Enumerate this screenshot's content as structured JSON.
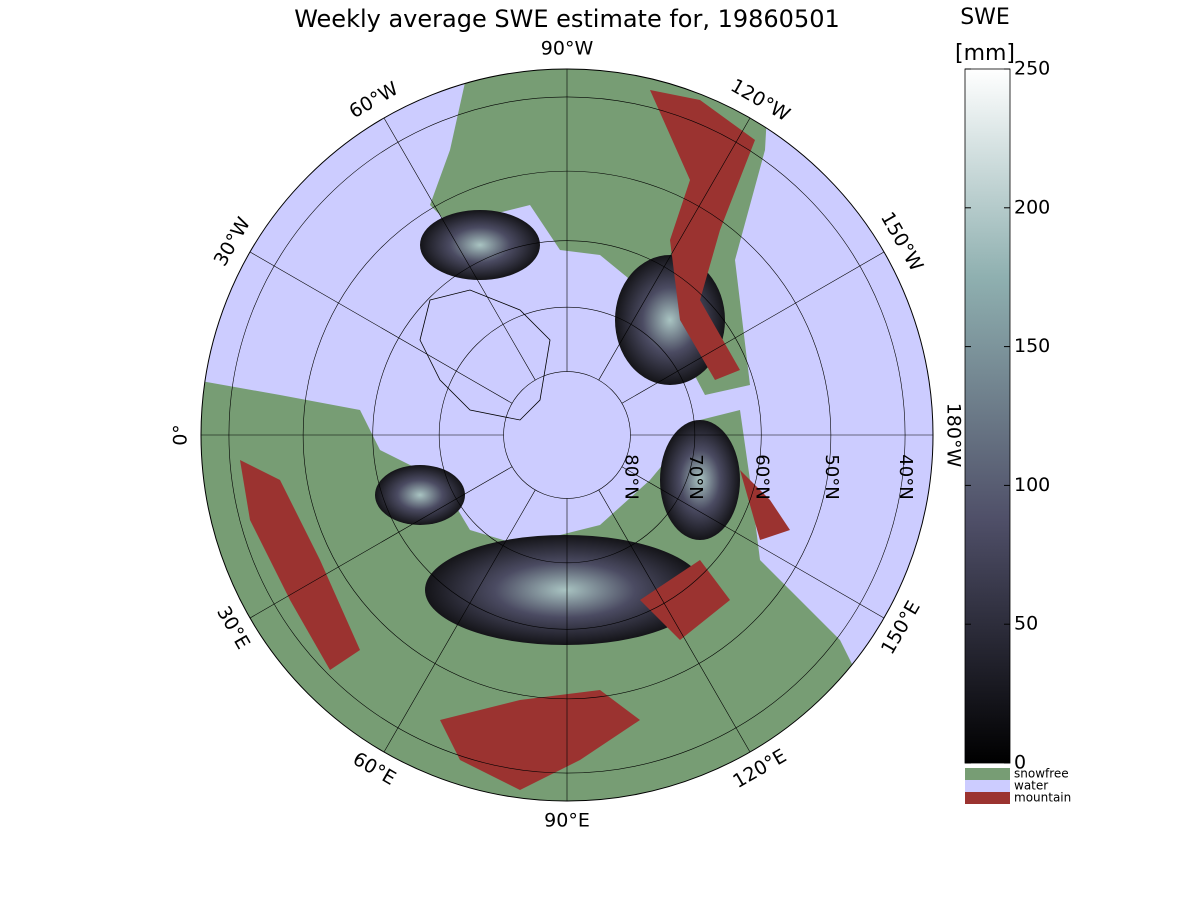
{
  "title": "Weekly average SWE estimate for, 19860501",
  "colorbar": {
    "label": "SWE",
    "unit": "[mm]",
    "lim": [
      0,
      250
    ],
    "ticks": [
      0,
      50,
      100,
      150,
      200,
      250
    ],
    "categories": [
      {
        "name": "snowfree",
        "color": "#779d74"
      },
      {
        "name": "water",
        "color": "#ccccff"
      },
      {
        "name": "mountain",
        "color": "#9b3330"
      }
    ]
  },
  "longitude_labels": [
    {
      "value": -90,
      "label": "90°W"
    },
    {
      "value": -60,
      "label": "60°W"
    },
    {
      "value": -30,
      "label": "30°W"
    },
    {
      "value": 0,
      "label": "0°"
    },
    {
      "value": 30,
      "label": "30°E"
    },
    {
      "value": 60,
      "label": "60°E"
    },
    {
      "value": 90,
      "label": "90°E"
    },
    {
      "value": 120,
      "label": "120°E"
    },
    {
      "value": 150,
      "label": "150°E"
    },
    {
      "value": 180,
      "label": "180°W"
    },
    {
      "value": -150,
      "label": "150°W"
    },
    {
      "value": -120,
      "label": "120°W"
    }
  ],
  "latitude_labels": [
    {
      "value": 80,
      "label": "80°N"
    },
    {
      "value": 70,
      "label": "70°N"
    },
    {
      "value": 60,
      "label": "60°N"
    },
    {
      "value": 50,
      "label": "50°N"
    },
    {
      "value": 40,
      "label": "40°N"
    }
  ]
}
